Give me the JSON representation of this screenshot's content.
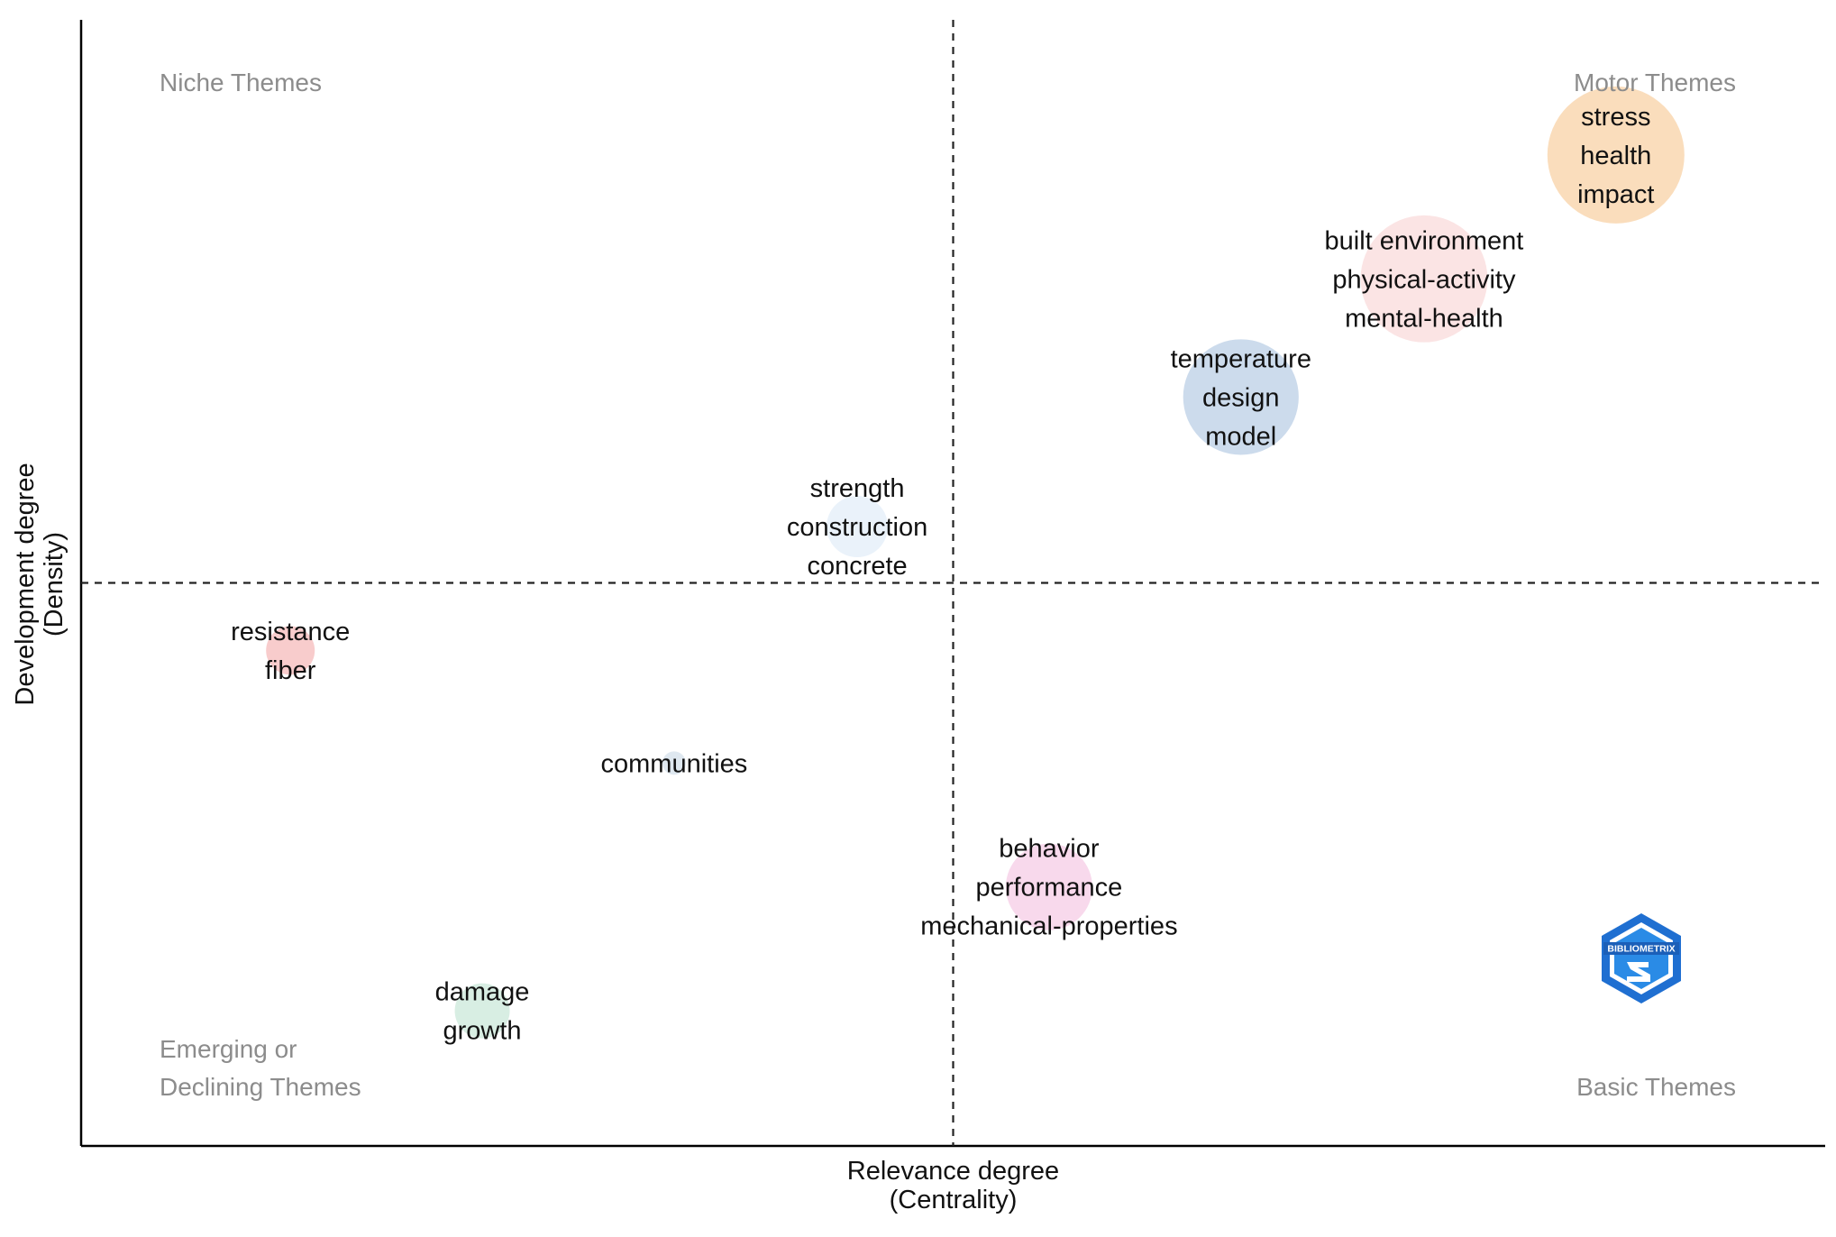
{
  "chart_data": {
    "type": "scatter",
    "subtype": "thematic-map-bubble",
    "xlabel": [
      "Relevance degree",
      "(Centrality)"
    ],
    "ylabel": [
      "Development degree",
      "(Density)"
    ],
    "xlim": [
      0,
      1
    ],
    "ylim": [
      0,
      1
    ],
    "median_lines": {
      "x": 0.5,
      "y": 0.5
    },
    "quadrants": {
      "top_left": [
        "Niche Themes"
      ],
      "top_right": [
        "Motor Themes"
      ],
      "bottom_left": [
        "Emerging or",
        "Declining Themes"
      ],
      "bottom_right": [
        "Basic Themes"
      ]
    },
    "grid": false,
    "watermark": "BIBLIOMETRIX",
    "clusters": [
      {
        "words": [
          "stress",
          "health",
          "impact"
        ],
        "x": 0.88,
        "y": 0.88,
        "size": 1.0,
        "color": "#fad9b5"
      },
      {
        "words": [
          "built environment",
          "physical-activity",
          "mental-health"
        ],
        "x": 0.77,
        "y": 0.77,
        "size": 0.92,
        "color": "#fbe1e1"
      },
      {
        "words": [
          "temperature",
          "design",
          "model"
        ],
        "x": 0.665,
        "y": 0.665,
        "size": 0.83,
        "color": "#c7d7ea"
      },
      {
        "words": [
          "strength",
          "construction",
          "concrete"
        ],
        "x": 0.445,
        "y": 0.55,
        "size": 0.4,
        "color": "#e8f1fa"
      },
      {
        "words": [
          "resistance",
          "fiber"
        ],
        "x": 0.12,
        "y": 0.44,
        "size": 0.3,
        "color": "#f7c6c6"
      },
      {
        "words": [
          "communities"
        ],
        "x": 0.34,
        "y": 0.34,
        "size": 0.1,
        "color": "#dce5ee"
      },
      {
        "words": [
          "behavior",
          "performance",
          "mechanical-properties"
        ],
        "x": 0.555,
        "y": 0.23,
        "size": 0.6,
        "color": "#f7d5ea"
      },
      {
        "words": [
          "damage",
          "growth"
        ],
        "x": 0.23,
        "y": 0.12,
        "size": 0.35,
        "color": "#d4ece0"
      }
    ]
  }
}
